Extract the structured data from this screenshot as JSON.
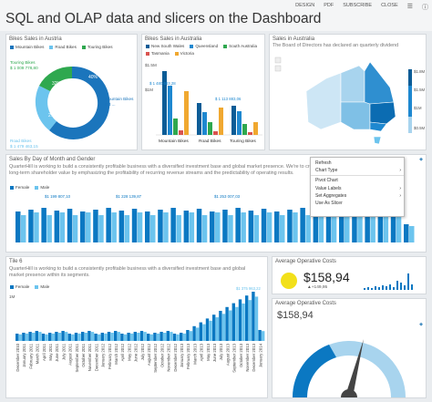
{
  "header": {
    "title": "SQL and OLAP data and slicers on the Dashboard",
    "nav": [
      "DESIGN",
      "PDF",
      "SUBSCRIBE",
      "CLOSE"
    ]
  },
  "tiles": {
    "donut": {
      "title": "Bikes Sales in Austria",
      "legend": [
        {
          "name": "Mountain Bikes",
          "color": "#1b75bc"
        },
        {
          "name": "Road Bikes",
          "color": "#6cc4ee"
        },
        {
          "name": "Touring Bikes",
          "color": "#2fa84f"
        }
      ],
      "label_touring": "Touring Bikes",
      "value_touring": "$ 1 009 778,80",
      "label_road": "Road Bikes",
      "value_road": "$ 1 479 463,15",
      "label_mountain": "Mountain Bikes",
      "value_mountain": "$ 3 ...",
      "pct_a": "40%",
      "pct_b": "27%",
      "pct_c": "32%"
    },
    "bars_austria": {
      "title": "Bikes Sales in Australia",
      "legend": [
        {
          "name": "New South Wales",
          "color": "#0b5c96"
        },
        {
          "name": "Queensland",
          "color": "#1e88d0"
        },
        {
          "name": "South Australia",
          "color": "#2fa84f"
        },
        {
          "name": "Tasmania",
          "color": "#d9534f"
        },
        {
          "name": "Victoria",
          "color": "#f0a830"
        }
      ],
      "ylabel_top": "$1.5M",
      "ylabel_mid": "$1M",
      "value_label_1": "$ 1 480 683,28",
      "value_label_2": "$ 1 113 883,06"
    },
    "map": {
      "title": "Sales in Australia",
      "desc": "The Board of Directors has declared an quarterly dividend",
      "legend_top": "$1.8M",
      "legend_2": "$1.5M",
      "legend_3": "$1M",
      "legend_4": "$0.5M"
    },
    "by_day": {
      "title": "Sales By Day of Month and Gender",
      "desc": "QuarterHill is working to build a consistently profitable business with a diversified investment base and global market presence. We're to create long-term shareholder value by emphasizing the profitability of recurring revenue streams and the predictability of operating results.",
      "legend": [
        {
          "name": "Female",
          "color": "#0b78c2"
        },
        {
          "name": "Male",
          "color": "#6cc4ee"
        }
      ],
      "label_1": "$1 199 807,10",
      "label_2": "$1 228 139,87",
      "label_3": "$1 253 007,03"
    },
    "context_menu": {
      "items": [
        "Refresh",
        "Chart Type",
        "Pivot Chart",
        "Value Labels",
        "Set Aggregates",
        "Use As Slicer"
      ]
    },
    "tile6": {
      "title": "Tile 6",
      "desc": "QuarterHill is working to build a consistently profitable business with a diversified investment base and global market presence within its segments.",
      "legend": [
        {
          "name": "Female",
          "color": "#0b78c2"
        },
        {
          "name": "Male",
          "color": "#6cc4ee"
        }
      ],
      "ylabel_top": "1M",
      "top_label": "$1 375 963,22",
      "xlabels": [
        "December 2010",
        "January 2011",
        "February 2011",
        "March 2011",
        "April 2011",
        "May 2011",
        "June 2011",
        "July 2011",
        "August 2011",
        "September 2011",
        "October 2011",
        "November 2011",
        "December 2011",
        "January 2012",
        "February 2012",
        "March 2012",
        "April 2012",
        "May 2012",
        "June 2012",
        "July 2012",
        "August 2012",
        "September 2012",
        "October 2012",
        "November 2012",
        "December 2012",
        "January 2013",
        "February 2013",
        "March 2013",
        "April 2013",
        "May 2013",
        "June 2013",
        "July 2013",
        "August 2013",
        "September 2013",
        "October 2013",
        "November 2013",
        "December 2013",
        "January 2014"
      ]
    },
    "avg1": {
      "title": "Average Operative Costs",
      "value": "$158,94",
      "delta": "+149,95"
    },
    "avg2": {
      "title": "Average Operative Costs",
      "value": "$158,94"
    }
  }
}
